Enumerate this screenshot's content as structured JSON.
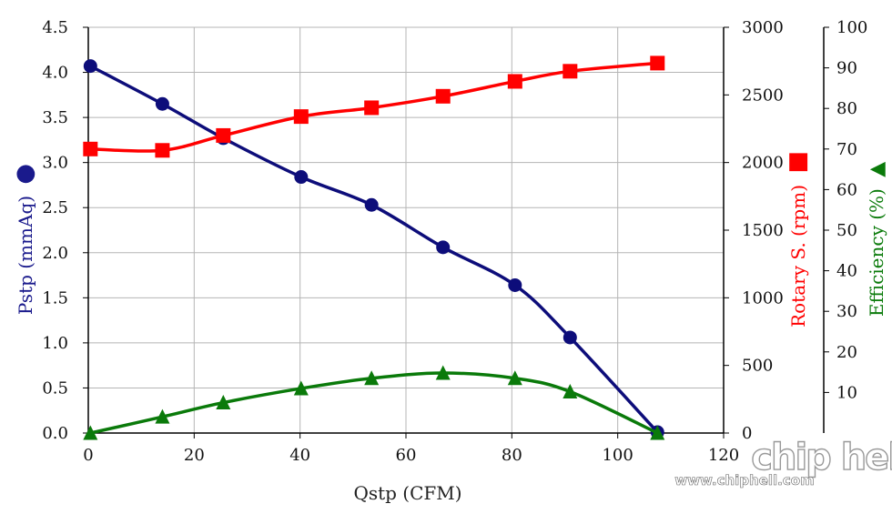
{
  "chart_data": {
    "type": "line",
    "xlabel": "Qstp (CFM)",
    "xlim": [
      0,
      120
    ],
    "xticks": [
      "0",
      "20",
      "40",
      "60",
      "80",
      "100",
      "120"
    ],
    "y_left": {
      "label": "Pstp (mmAq)",
      "marker_glyph": "●",
      "ylim": [
        0,
        4.5
      ],
      "ticks": [
        "0.0",
        "0.5",
        "1.0",
        "1.5",
        "2.0",
        "2.5",
        "3.0",
        "3.5",
        "4.0",
        "4.5"
      ]
    },
    "y_right1": {
      "label": "Rotary S. (rpm)",
      "marker_glyph": "■",
      "ylim": [
        0,
        3000
      ],
      "ticks": [
        "0",
        "500",
        "1000",
        "1500",
        "2000",
        "2500",
        "3000"
      ]
    },
    "y_right2": {
      "label": "Efficiency (%)",
      "marker_glyph": "▲",
      "ylim": [
        0,
        100
      ],
      "ticks": [
        "10",
        "20",
        "30",
        "40",
        "50",
        "60",
        "70",
        "80",
        "90",
        "100"
      ]
    },
    "series": [
      {
        "axis": "left",
        "marker": "circle",
        "color": "#0d0d7a",
        "x": [
          0.4,
          14,
          25.5,
          40.2,
          53.5,
          67,
          80.6,
          91,
          107.5
        ],
        "y": [
          4.07,
          3.65,
          3.27,
          2.84,
          2.53,
          2.06,
          1.64,
          1.06,
          0.01
        ]
      },
      {
        "axis": "right1",
        "marker": "square",
        "color": "#ff0000",
        "x": [
          0.4,
          14,
          25.5,
          40.2,
          53.5,
          67,
          80.6,
          91,
          107.5
        ],
        "y": [
          2100,
          2090,
          2200,
          2340,
          2405,
          2490,
          2600,
          2675,
          2735
        ]
      },
      {
        "axis": "right2",
        "marker": "triangle",
        "color": "#0a7a0a",
        "x": [
          0.4,
          14,
          25.5,
          40.2,
          53.5,
          67,
          80.6,
          91,
          107.5
        ],
        "y": [
          0,
          4,
          7.5,
          11,
          13.5,
          14.8,
          13.5,
          10.2,
          0
        ]
      }
    ],
    "grid": true
  },
  "watermark": {
    "logo_text": "chip hell",
    "url": "www.chiphell.com"
  }
}
